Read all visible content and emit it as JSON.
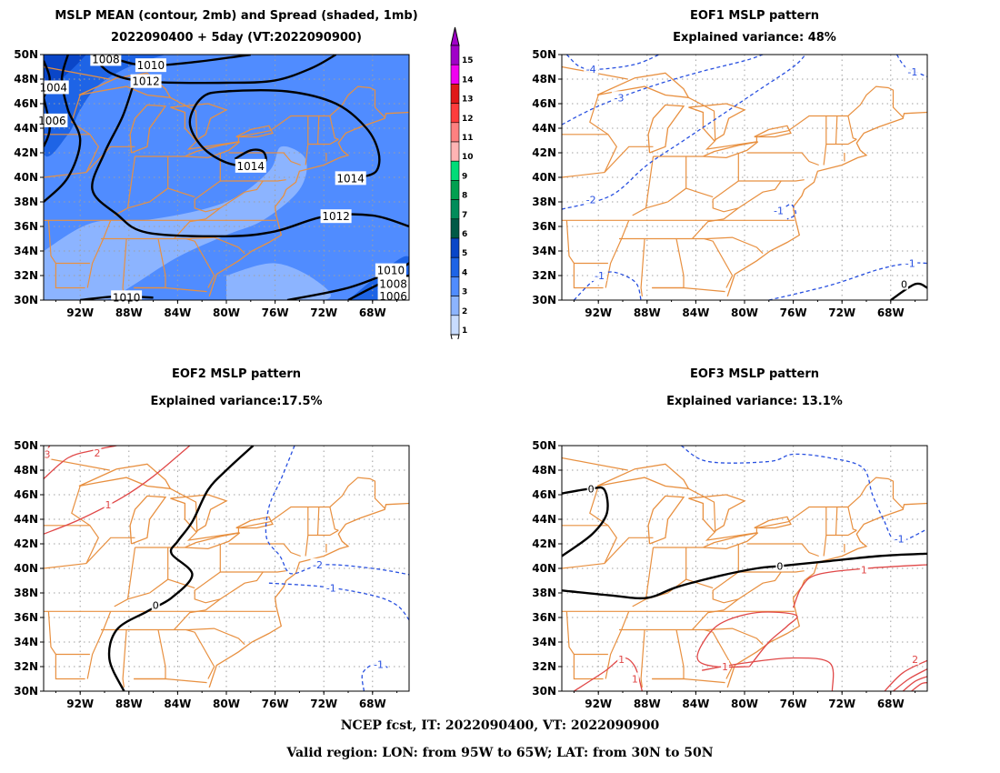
{
  "panels": {
    "mean": {
      "title_line1": "MSLP MEAN (contour, 2mb) and Spread (shaded, 1mb)",
      "title_line2": "2022090400 + 5day (VT:2022090900)",
      "contour_labels": [
        "1010",
        "1012",
        "1014",
        "1014",
        "1012",
        "1010",
        "1008",
        "1006",
        "1004",
        "1006",
        "1008",
        "1010"
      ]
    },
    "eof1": {
      "title_line1": "EOF1 MSLP pattern",
      "title_line2": "Explained variance: 48%",
      "contour_labels": [
        "-4",
        "-3",
        "-2",
        "-1",
        "-1",
        "-1",
        "-1",
        "0"
      ]
    },
    "eof2": {
      "title_line1": "EOF2 MSLP pattern",
      "title_line2": "Explained variance:17.5%",
      "contour_labels": [
        "3",
        "2",
        "1",
        "0",
        "-2",
        "-1",
        "-1"
      ]
    },
    "eof3": {
      "title_line1": "EOF3 MSLP pattern",
      "title_line2": "Explained variance: 13.1%",
      "contour_labels": [
        "0",
        "0",
        "-1",
        "1",
        "1",
        "1",
        "1",
        "2"
      ]
    }
  },
  "axes": {
    "lat_labels": [
      "50N",
      "48N",
      "46N",
      "44N",
      "42N",
      "40N",
      "38N",
      "36N",
      "34N",
      "32N",
      "30N"
    ],
    "lon_labels": [
      "92W",
      "88W",
      "84W",
      "80W",
      "76W",
      "72W",
      "68W"
    ]
  },
  "colorbar": {
    "labels": [
      "15",
      "14",
      "13",
      "12",
      "11",
      "10",
      "9",
      "8",
      "7",
      "6",
      "5",
      "4",
      "3",
      "2",
      "1"
    ],
    "colors": [
      "#a000c8",
      "#f000f0",
      "#e01818",
      "#ff3c3c",
      "#ff8080",
      "#ffb4b4",
      "#00dc78",
      "#00a050",
      "#008c5a",
      "#005a46",
      "#0a46c8",
      "#1e64e6",
      "#508cff",
      "#8cb4ff",
      "#c8dcff"
    ]
  },
  "colors": {
    "map_lines": "#e89040",
    "negative_contour": "#2850e0",
    "positive_contour": "#e04848",
    "zero_contour": "#000000",
    "grid": "#a0a0a0"
  },
  "footer": {
    "line1": "NCEP fcst, IT: 2022090400, VT: 2022090900",
    "line2": "Valid region: LON: from 95W to 65W; LAT: from 30N to 50N"
  }
}
